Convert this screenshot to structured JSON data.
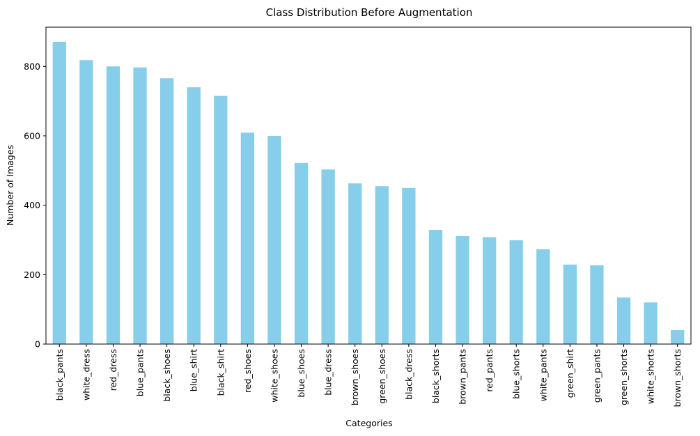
{
  "chart_data": {
    "type": "bar",
    "title": "Class Distribution Before Augmentation",
    "xlabel": "Categories",
    "ylabel": "Number of Images",
    "categories": [
      "black_pants",
      "white_dress",
      "red_dress",
      "blue_pants",
      "black_shoes",
      "blue_shirt",
      "black_shirt",
      "red_shoes",
      "white_shoes",
      "blue_shoes",
      "blue_dress",
      "brown_shoes",
      "green_shoes",
      "black_dress",
      "black_shorts",
      "brown_pants",
      "red_pants",
      "blue_shorts",
      "white_pants",
      "green_shirt",
      "green_pants",
      "green_shorts",
      "white_shorts",
      "brown_shorts"
    ],
    "values": [
      871,
      818,
      800,
      797,
      766,
      740,
      715,
      609,
      600,
      522,
      503,
      463,
      455,
      450,
      329,
      311,
      308,
      299,
      273,
      229,
      227,
      134,
      120,
      40
    ],
    "ylim": [
      0,
      913
    ],
    "yticks": [
      0,
      200,
      400,
      600,
      800
    ],
    "bar_color": "#87ceeb",
    "grid": false,
    "legend": false
  }
}
